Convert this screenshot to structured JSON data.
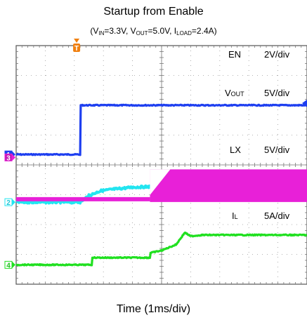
{
  "chart_data": {
    "type": "line",
    "title": "Startup from Enable",
    "subtitle": {
      "open": "(V",
      "vin_sub": "IN",
      "vin_val": "=3.3V, V",
      "vout_sub": "OUT",
      "vout_val": "=5.0V, I",
      "iload_sub": "LOAD",
      "iload_val": "=2.4A)"
    },
    "xlabel": "Time (1ms/div)",
    "x_divisions": 10,
    "y_divisions": 8,
    "x_unit": "ms",
    "grid": true,
    "trigger_marker": "T",
    "series": [
      {
        "name": "EN",
        "channel": "1",
        "scale": "2V/div",
        "color": "#1e3ff0",
        "label": "EN",
        "points": [
          [
            0,
            0
          ],
          [
            2.2,
            0
          ],
          [
            2.22,
            3.3
          ],
          [
            10,
            3.3
          ]
        ]
      },
      {
        "name": "VOUT",
        "channel": "2",
        "scale": "5V/div",
        "color": "#22e5f0",
        "label_main": "V",
        "label_sub": "OUT",
        "points": [
          [
            0,
            0
          ],
          [
            2.2,
            0
          ],
          [
            2.5,
            1.1
          ],
          [
            2.9,
            1.9
          ],
          [
            3.4,
            2.2
          ],
          [
            4.0,
            2.5
          ],
          [
            4.6,
            2.6
          ],
          [
            5.0,
            3.2
          ],
          [
            5.5,
            3.9
          ],
          [
            5.8,
            4.2
          ],
          [
            6.2,
            5.0
          ],
          [
            10,
            5.0
          ]
        ]
      },
      {
        "name": "LX",
        "channel": "3",
        "scale": "5V/div",
        "color": "#e820d8",
        "label": "LX",
        "baseline_points": [
          [
            0,
            0
          ],
          [
            4.6,
            0
          ]
        ],
        "switching_start": 4.6,
        "switching_end": 10,
        "switching_low": 0,
        "switching_high": 5.0
      },
      {
        "name": "IL",
        "channel": "4",
        "scale": "5A/div",
        "color": "#20e020",
        "label_main": "I",
        "label_sub": "L",
        "points": [
          [
            0,
            0
          ],
          [
            2.6,
            0
          ],
          [
            2.62,
            1.2
          ],
          [
            4.6,
            1.2
          ],
          [
            4.62,
            2.0
          ],
          [
            5.0,
            2.4
          ],
          [
            5.5,
            3.4
          ],
          [
            5.8,
            5.4
          ],
          [
            6.0,
            4.8
          ],
          [
            6.4,
            5.0
          ],
          [
            10,
            5.0
          ]
        ]
      }
    ]
  }
}
